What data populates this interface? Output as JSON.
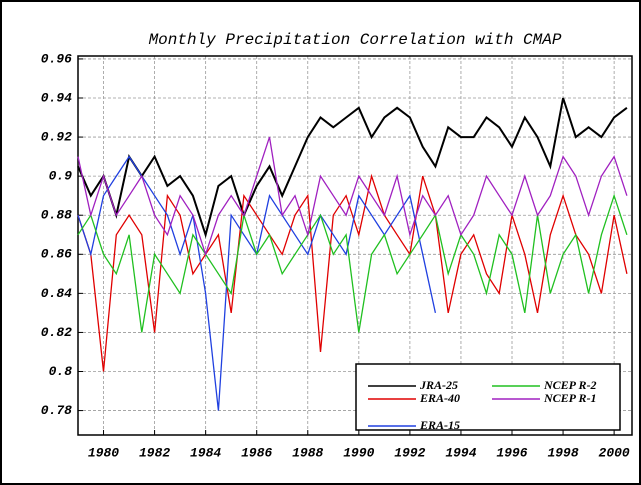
{
  "chart_data": {
    "type": "line",
    "title": "Monthly Precipitation Correlation with CMAP",
    "x": [
      1979.0,
      1979.5,
      1980.0,
      1980.5,
      1981.0,
      1981.5,
      1982.0,
      1982.5,
      1983.0,
      1983.5,
      1984.0,
      1984.5,
      1985.0,
      1985.5,
      1986.0,
      1986.5,
      1987.0,
      1987.5,
      1988.0,
      1988.5,
      1989.0,
      1989.5,
      1990.0,
      1990.5,
      1991.0,
      1991.5,
      1992.0,
      1992.5,
      1993.0,
      1993.5,
      1994.0,
      1994.5,
      1995.0,
      1995.5,
      1996.0,
      1996.5,
      1997.0,
      1997.5,
      1998.0,
      1998.5,
      1999.0,
      1999.5,
      2000.0,
      2000.5
    ],
    "series": [
      {
        "name": "JRA-25",
        "color": "#000000",
        "values": [
          0.905,
          0.89,
          0.9,
          0.88,
          0.91,
          0.9,
          0.91,
          0.895,
          0.9,
          0.89,
          0.87,
          0.895,
          0.9,
          0.88,
          0.895,
          0.905,
          0.89,
          0.905,
          0.92,
          0.93,
          0.925,
          0.93,
          0.935,
          0.92,
          0.93,
          0.935,
          0.93,
          0.915,
          0.905,
          0.925,
          0.92,
          0.92,
          0.93,
          0.925,
          0.915,
          0.93,
          0.92,
          0.905,
          0.94,
          0.92,
          0.925,
          0.92,
          0.93,
          0.935
        ]
      },
      {
        "name": "ERA-40",
        "color": "#e00000",
        "values": [
          0.88,
          0.86,
          0.8,
          0.87,
          0.88,
          0.87,
          0.82,
          0.89,
          0.88,
          0.85,
          0.86,
          0.87,
          0.83,
          0.89,
          0.88,
          0.87,
          0.86,
          0.88,
          0.89,
          0.81,
          0.88,
          0.89,
          0.87,
          0.9,
          0.88,
          0.87,
          0.86,
          0.9,
          0.88,
          0.83,
          0.86,
          0.87,
          0.85,
          0.84,
          0.88,
          0.86,
          0.83,
          0.87,
          0.89,
          0.87,
          0.86,
          0.84,
          0.88,
          0.85
        ]
      },
      {
        "name": "ERA-15",
        "color": "#2040e0",
        "values": [
          0.88,
          0.86,
          0.89,
          0.9,
          0.91,
          0.9,
          0.89,
          0.88,
          0.86,
          0.88,
          0.84,
          0.78,
          0.88,
          0.87,
          0.86,
          0.89,
          0.88,
          0.87,
          0.86,
          0.88,
          0.87,
          0.86,
          0.89,
          0.88,
          0.87,
          0.88,
          0.89,
          0.86,
          0.83,
          null,
          null,
          null,
          null,
          null,
          null,
          null,
          null,
          null,
          null,
          null,
          null,
          null,
          null,
          null
        ]
      },
      {
        "name": "NCEP R-2",
        "color": "#20c020",
        "values": [
          0.87,
          0.88,
          0.86,
          0.85,
          0.87,
          0.82,
          0.86,
          0.85,
          0.84,
          0.87,
          0.86,
          0.85,
          0.84,
          0.88,
          0.86,
          0.87,
          0.85,
          0.86,
          0.87,
          0.88,
          0.86,
          0.87,
          0.82,
          0.86,
          0.87,
          0.85,
          0.86,
          0.87,
          0.88,
          0.85,
          0.87,
          0.86,
          0.84,
          0.87,
          0.86,
          0.83,
          0.88,
          0.84,
          0.86,
          0.87,
          0.84,
          0.87,
          0.89,
          0.87
        ]
      },
      {
        "name": "NCEP R-1",
        "color": "#a020c0",
        "values": [
          0.91,
          0.88,
          0.9,
          0.88,
          0.89,
          0.9,
          0.88,
          0.87,
          0.89,
          0.88,
          0.86,
          0.88,
          0.89,
          0.88,
          0.9,
          0.92,
          0.88,
          0.89,
          0.87,
          0.9,
          0.89,
          0.88,
          0.9,
          0.89,
          0.88,
          0.9,
          0.87,
          0.89,
          0.88,
          0.89,
          0.87,
          0.88,
          0.9,
          0.89,
          0.88,
          0.9,
          0.88,
          0.89,
          0.91,
          0.9,
          0.88,
          0.9,
          0.91,
          0.89
        ]
      }
    ],
    "xlim": [
      1979.0,
      2000.7
    ],
    "xticks": [
      1980,
      1982,
      1984,
      1986,
      1988,
      1990,
      1992,
      1994,
      1996,
      1998,
      2000
    ],
    "ylim": [
      0.7675,
      0.9615
    ],
    "yticks": [
      0.78,
      0.8,
      0.82,
      0.84,
      0.86,
      0.88,
      0.9,
      0.92,
      0.94,
      0.96
    ],
    "grid": true,
    "legend": "lower right"
  }
}
